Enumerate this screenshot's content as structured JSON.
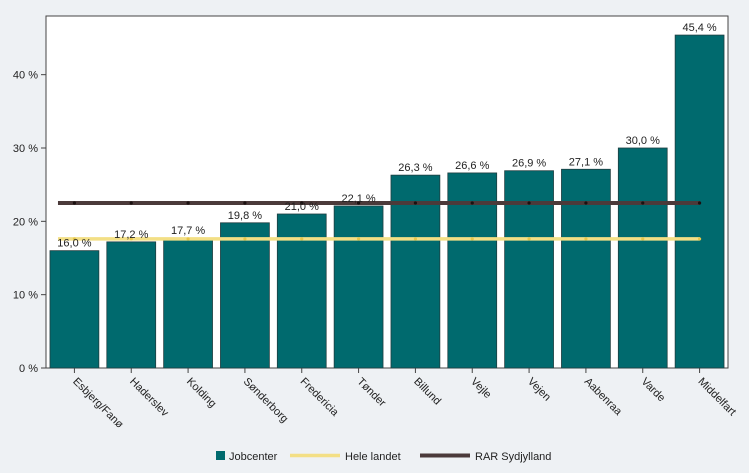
{
  "chart_data": {
    "type": "bar",
    "categories": [
      "Esbjerg/Fanø",
      "Haderslev",
      "Kolding",
      "Sønderborg",
      "Fredericia",
      "Tønder",
      "Billund",
      "Vejle",
      "Vejen",
      "Aabenraa",
      "Varde",
      "Middelfart"
    ],
    "series": [
      {
        "name": "Jobcenter",
        "type": "bar",
        "color": "#006a6e",
        "values": [
          16.0,
          17.2,
          17.7,
          19.8,
          21.0,
          22.1,
          26.3,
          26.6,
          26.9,
          27.1,
          30.0,
          45.4
        ],
        "labels": [
          "16,0 %",
          "17,2 %",
          "17,7 %",
          "19,8 %",
          "21,0 %",
          "22,1 %",
          "26,3 %",
          "26,6 %",
          "26,9 %",
          "27,1 %",
          "30,0 %",
          "45,4 %"
        ]
      },
      {
        "name": "Hele landet",
        "type": "line",
        "color": "#f3df85",
        "value": 17.6
      },
      {
        "name": "RAR Sydjylland",
        "type": "line",
        "color": "#4b3a3a",
        "value": 22.5
      }
    ],
    "yticks": [
      0,
      10,
      20,
      30,
      40
    ],
    "ytick_labels": [
      "0 %",
      "10 %",
      "20 %",
      "30 %",
      "40 %"
    ],
    "ylim": [
      0,
      48
    ],
    "grid": false,
    "legend": "bottom",
    "xlabel": "",
    "ylabel": "",
    "title": ""
  }
}
